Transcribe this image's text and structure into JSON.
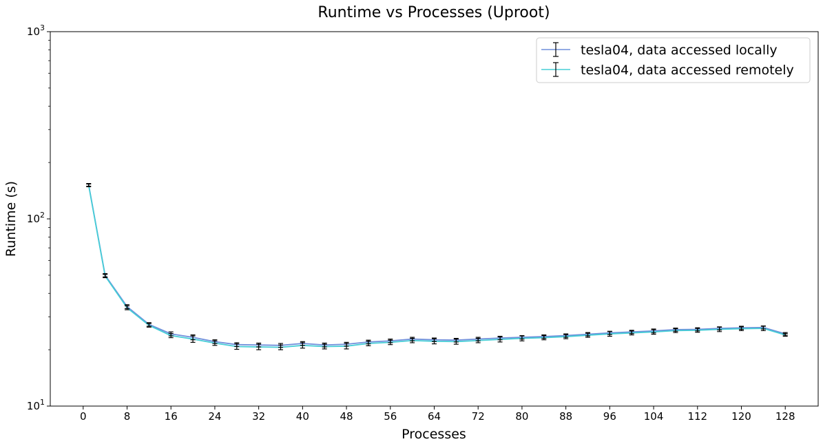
{
  "chart_data": {
    "type": "line",
    "title": "Runtime vs Processes (Uproot)",
    "xlabel": "Processes",
    "ylabel": "Runtime (s)",
    "xlim": [
      -6,
      134
    ],
    "ylim": [
      10,
      1000
    ],
    "yscale": "log",
    "xticks": [
      0,
      8,
      16,
      24,
      32,
      40,
      48,
      56,
      64,
      72,
      80,
      88,
      96,
      104,
      112,
      120,
      128
    ],
    "yticks": [
      {
        "value": 10,
        "base": "10",
        "exp": "1"
      },
      {
        "value": 100,
        "base": "10",
        "exp": "2"
      },
      {
        "value": 1000,
        "base": "10",
        "exp": "3"
      }
    ],
    "grid": false,
    "legend_position": "top-right",
    "x": [
      1,
      4,
      8,
      12,
      16,
      20,
      24,
      28,
      32,
      36,
      40,
      44,
      48,
      52,
      56,
      60,
      64,
      68,
      72,
      76,
      80,
      84,
      88,
      92,
      96,
      100,
      104,
      108,
      112,
      116,
      120,
      124,
      128
    ],
    "series": [
      {
        "name": "tesla04, data accessed locally",
        "color": "#6f8fdb",
        "values": [
          152,
          50,
          34,
          27.3,
          24.3,
          23.3,
          22.1,
          21.3,
          21.2,
          21.1,
          21.6,
          21.2,
          21.4,
          22.0,
          22.3,
          22.8,
          22.6,
          22.5,
          22.8,
          23.1,
          23.3,
          23.5,
          23.8,
          24.2,
          24.6,
          24.9,
          25.2,
          25.6,
          25.7,
          26.0,
          26.2,
          26.3,
          24.3
        ],
        "errors": [
          2.5,
          1.0,
          0.8,
          0.6,
          0.6,
          0.7,
          0.5,
          0.5,
          0.5,
          0.5,
          0.5,
          0.5,
          0.5,
          0.5,
          0.5,
          0.5,
          0.5,
          0.5,
          0.5,
          0.5,
          0.5,
          0.5,
          0.5,
          0.5,
          0.5,
          0.5,
          0.6,
          0.5,
          0.5,
          0.5,
          0.5,
          0.5,
          0.4
        ]
      },
      {
        "name": "tesla04, data accessed remotely",
        "color": "#46cdd6",
        "values": [
          151,
          49.5,
          33.5,
          27.0,
          23.8,
          22.8,
          21.7,
          20.8,
          20.7,
          20.6,
          21.1,
          20.8,
          20.9,
          21.6,
          21.9,
          22.4,
          22.2,
          22.1,
          22.4,
          22.7,
          23.0,
          23.2,
          23.5,
          23.9,
          24.3,
          24.6,
          24.9,
          25.3,
          25.4,
          25.7,
          25.9,
          26.0,
          24.0
        ],
        "errors": [
          2.5,
          1.0,
          0.8,
          0.6,
          0.6,
          0.9,
          0.6,
          0.7,
          0.7,
          0.6,
          0.7,
          0.6,
          0.7,
          0.6,
          0.6,
          0.6,
          0.7,
          0.7,
          0.6,
          0.7,
          0.7,
          0.6,
          0.6,
          0.6,
          0.7,
          0.6,
          0.7,
          0.6,
          0.6,
          0.7,
          0.6,
          0.7,
          0.4
        ]
      }
    ]
  }
}
